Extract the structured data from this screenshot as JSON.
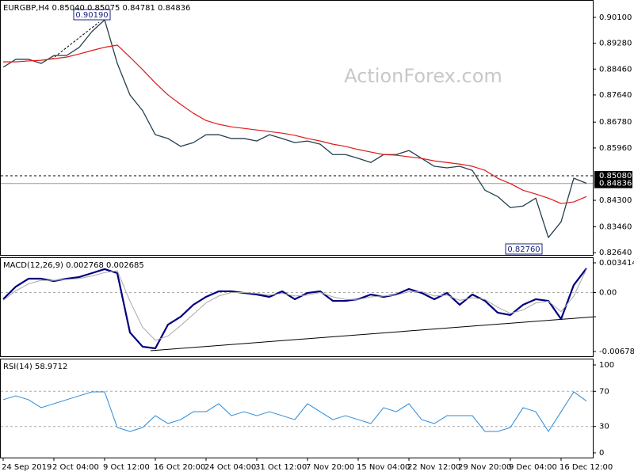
{
  "chart_data": [
    {
      "type": "line",
      "title": "EURGBP,H4 0.85040 0.85075 0.84781 0.84836",
      "watermark": "ActionForex.com",
      "high_label": "0.90190",
      "low_label": "0.82760",
      "categories": [
        "24 Sep 2019",
        null,
        null,
        null,
        "2 Oct 04:00",
        null,
        null,
        null,
        "9 Oct 12:00",
        null,
        null,
        null,
        "16 Oct 20:00",
        null,
        null,
        null,
        "24 Oct 04:00",
        null,
        null,
        null,
        "31 Oct 12:00",
        null,
        null,
        null,
        "7 Nov 20:00",
        null,
        null,
        null,
        "15 Nov 04:00",
        null,
        null,
        null,
        "22 Nov 12:00",
        null,
        null,
        null,
        "29 Nov 20:00",
        null,
        null,
        null,
        "9 Dec 04:00",
        null,
        null,
        null,
        "16 Dec 12:00",
        null,
        null
      ],
      "series": [
        {
          "name": "EURGBP",
          "color": "#24404e",
          "width": 1.3,
          "values": [
            0.8852,
            0.8877,
            0.8877,
            0.8864,
            0.8889,
            0.8889,
            0.8915,
            0.8965,
            0.9002,
            0.8864,
            0.8764,
            0.8714,
            0.8638,
            0.8626,
            0.8601,
            0.8613,
            0.8638,
            0.8638,
            0.8626,
            0.8626,
            0.8618,
            0.8638,
            0.8626,
            0.8613,
            0.8618,
            0.8608,
            0.8575,
            0.8575,
            0.8563,
            0.855,
            0.8575,
            0.8575,
            0.8588,
            0.8563,
            0.8538,
            0.8533,
            0.8538,
            0.8525,
            0.8462,
            0.8442,
            0.8407,
            0.8412,
            0.8437,
            0.8312,
            0.8362,
            0.85,
            0.8484
          ]
        },
        {
          "name": "MA",
          "color": "#e01818",
          "width": 1.2,
          "values": [
            0.8869,
            0.8869,
            0.8872,
            0.8874,
            0.8879,
            0.8884,
            0.8894,
            0.8905,
            0.8915,
            0.8922,
            0.8884,
            0.8844,
            0.8802,
            0.8764,
            0.8734,
            0.8706,
            0.8683,
            0.8671,
            0.8663,
            0.8658,
            0.8653,
            0.8648,
            0.8643,
            0.8636,
            0.8626,
            0.8618,
            0.8608,
            0.8601,
            0.8591,
            0.8583,
            0.8575,
            0.8573,
            0.8568,
            0.8563,
            0.8555,
            0.855,
            0.8545,
            0.8538,
            0.8525,
            0.85,
            0.8483,
            0.8462,
            0.845,
            0.8437,
            0.842,
            0.8425,
            0.8442
          ]
        }
      ],
      "ylim": [
        0.8257,
        0.9065
      ],
      "yticks": [
        {
          "value": 0.901,
          "label": "0.90100"
        },
        {
          "value": 0.8928,
          "label": "0.89280"
        },
        {
          "value": 0.8846,
          "label": "0.88460"
        },
        {
          "value": 0.8764,
          "label": "0.87640"
        },
        {
          "value": 0.8678,
          "label": "0.86780"
        },
        {
          "value": 0.8596,
          "label": "0.85960"
        },
        {
          "value": 0.843,
          "label": "0.84300"
        },
        {
          "value": 0.8346,
          "label": "0.83460"
        },
        {
          "value": 0.8264,
          "label": "0.82640"
        }
      ],
      "price_lines": [
        {
          "value": 0.8508,
          "label": "0.85080"
        },
        {
          "value": 0.84836,
          "label": "0.84836"
        }
      ]
    },
    {
      "type": "line",
      "title": "MACD(12,26,9) 0.002768 0.002685",
      "series": [
        {
          "name": "MACD",
          "color": "#000080",
          "width": 2.2,
          "values": [
            -0.00077,
            0.00068,
            0.00159,
            0.00159,
            0.00132,
            0.00159,
            0.00178,
            0.00223,
            0.00269,
            0.00223,
            -0.0046,
            -0.00623,
            -0.00642,
            -0.00369,
            -0.00278,
            -0.00141,
            -0.0005,
            0.00014,
            0.00014,
            -5e-05,
            -0.00023,
            -0.0005,
            0.00014,
            -0.00077,
            -5e-05,
            0.00014,
            -0.00096,
            -0.00096,
            -0.00077,
            -0.00023,
            -0.0005,
            -0.00023,
            0.00041,
            -5e-05,
            -0.00077,
            -5e-05,
            -0.00141,
            -0.00023,
            -0.00096,
            -0.00232,
            -0.00259,
            -0.00141,
            -0.00077,
            -0.00096,
            -0.00305,
            0.00086,
            0.002768
          ]
        },
        {
          "name": "Signal",
          "color": "#a8a8a8",
          "width": 1,
          "values": [
            -0.0009,
            0.0002,
            0.001,
            0.0014,
            0.0014,
            0.0015,
            0.0016,
            0.0019,
            0.0023,
            0.0025,
            -0.001,
            -0.004,
            -0.0055,
            -0.005,
            -0.0038,
            -0.0025,
            -0.0012,
            -0.0004,
            0,
            0,
            -0.0001,
            -0.0003,
            -0.0001,
            -0.0004,
            -0.0003,
            0,
            -0.0005,
            -0.0008,
            -0.0008,
            -0.0005,
            -0.0004,
            -0.0003,
            0.0001,
            0.0001,
            -0.0004,
            -0.0003,
            -0.0009,
            -0.0006,
            -0.0008,
            -0.0017,
            -0.0024,
            -0.002,
            -0.0012,
            -0.001,
            -0.0022,
            -0.0004,
            0.002685
          ]
        }
      ],
      "ylim": [
        -0.007329,
        0.004051
      ],
      "yticks": [
        0.003414,
        {
          "value": 0,
          "label": "0.00"
        },
        -0.006783
      ],
      "levels": [
        0
      ]
    },
    {
      "type": "line",
      "title": "RSI(14) 58.9712",
      "series": [
        {
          "name": "RSI",
          "color": "#2a8ad8",
          "width": 1,
          "values": [
            60.4,
            64.9,
            60.4,
            51.4,
            55.9,
            60.4,
            64.9,
            69.4,
            69.4,
            28.8,
            24.3,
            28.8,
            42.3,
            33.3,
            37.8,
            46.8,
            46.8,
            55.9,
            42.3,
            46.8,
            42.3,
            46.8,
            42.3,
            37.8,
            55.9,
            46.8,
            37.8,
            42.3,
            37.8,
            33.3,
            51.4,
            46.8,
            55.9,
            37.8,
            33.3,
            42.3,
            42.3,
            42.3,
            24.3,
            24.3,
            28.8,
            51.4,
            46.8,
            24.3,
            46.8,
            69.4,
            58.9712
          ]
        }
      ],
      "ylim": [
        -5.4,
        107.2
      ],
      "yticks": [
        100,
        70,
        30,
        0
      ],
      "levels": [
        70,
        30
      ]
    }
  ]
}
